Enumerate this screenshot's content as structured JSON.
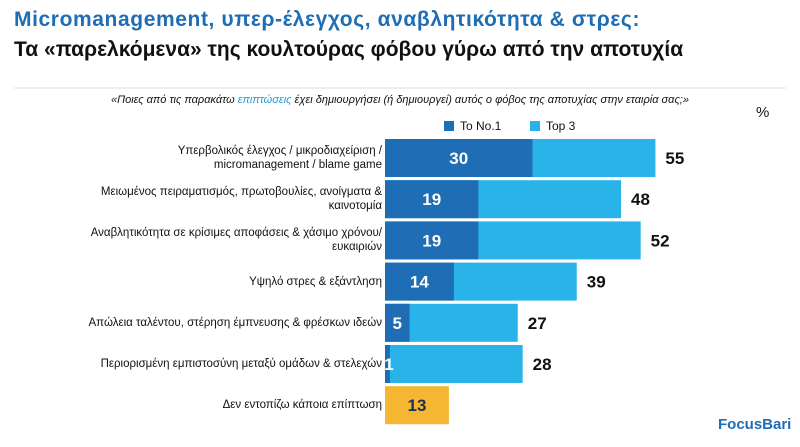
{
  "chart_data": {
    "type": "bar",
    "title": "Micromanagement, υπερ-έλεγχος, αναβλητικότητα & στρες:",
    "subtitle": "Τα «παρελκόμενα» της κουλτούρας φόβου γύρω από την αποτυχία",
    "question": [
      "«Ποιες από τις παρακάτω ",
      "επιπτώσεις",
      " έχει δημιουργήσει (ή δημιουργεί) αυτός ο φόβος της αποτυχίας στην εταιρία σας;»"
    ],
    "unit": "%",
    "categories": [
      "Υπερβολικός έλεγχος / μικροδιαχείριση / micromanagement / blame game",
      "Μειωμένος πειραματισμός, πρωτοβουλίες, ανοίγματα & καινοτομία",
      "Αναβλητικότητα σε κρίσιμες αποφάσεις & χάσιμο χρόνου/ευκαιριών",
      "Υψηλό στρες & εξάντληση",
      "Απώλεια ταλέντου, στέρηση έμπνευσης & φρέσκων ιδεών",
      "Περιορισμένη εμπιστοσύνη μεταξύ ομάδων & στελεχών",
      "Δεν εντοπίζω κάποια επίπτωση"
    ],
    "series": [
      {
        "name": "Top 3",
        "color": "#29b3e8",
        "values": [
          55,
          48,
          52,
          39,
          27,
          28,
          null
        ]
      },
      {
        "name": "To No.1",
        "color": "#1f6db4",
        "values": [
          30,
          19,
          19,
          14,
          5,
          1,
          null
        ]
      },
      {
        "color": "#f5b731",
        "values": [
          null,
          null,
          null,
          null,
          null,
          null,
          13
        ]
      }
    ],
    "xlim": [
      0,
      60
    ],
    "logo": "FocusBari"
  }
}
